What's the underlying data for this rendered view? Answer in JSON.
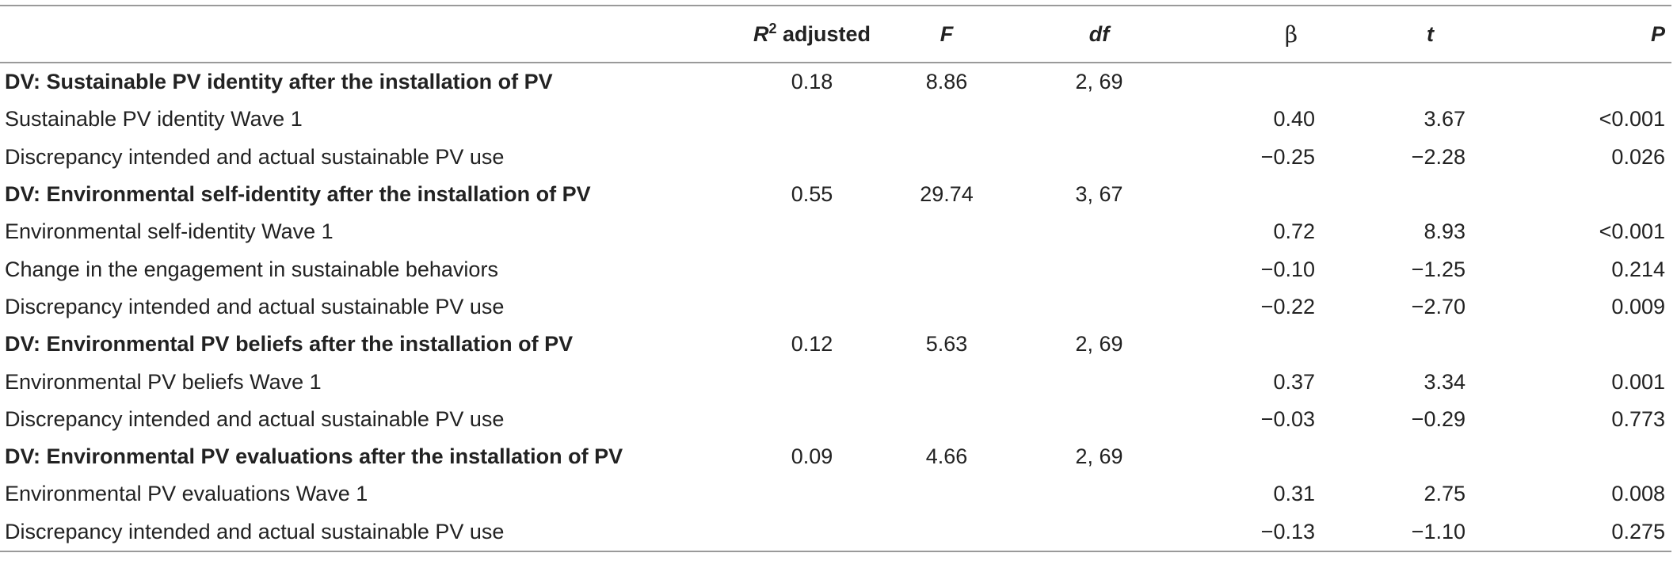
{
  "header": {
    "r2_main": "R",
    "r2_sup": "2",
    "r2_rest": " adjusted",
    "f": "F",
    "df": "df",
    "beta": "β",
    "t": "t",
    "p": "P"
  },
  "groups": [
    {
      "label": "DV: Sustainable PV identity after the installation of PV",
      "r2": "0.18",
      "f": "8.86",
      "df": "2, 69",
      "rows": [
        {
          "label": "Sustainable PV identity Wave 1",
          "beta": "0.40",
          "t": "3.67",
          "p": "<0.001"
        },
        {
          "label": "Discrepancy intended and actual sustainable PV use",
          "beta": "−0.25",
          "t": "−2.28",
          "p": "0.026"
        }
      ]
    },
    {
      "label": "DV: Environmental self-identity after the installation of PV",
      "r2": "0.55",
      "f": "29.74",
      "df": "3, 67",
      "rows": [
        {
          "label": "Environmental self-identity Wave 1",
          "beta": "0.72",
          "t": "8.93",
          "p": "<0.001"
        },
        {
          "label": "Change in the engagement in sustainable behaviors",
          "beta": "−0.10",
          "t": "−1.25",
          "p": "0.214"
        },
        {
          "label": "Discrepancy intended and actual sustainable PV use",
          "beta": "−0.22",
          "t": "−2.70",
          "p": "0.009"
        }
      ]
    },
    {
      "label": "DV: Environmental PV beliefs after the installation of PV",
      "r2": "0.12",
      "f": "5.63",
      "df": "2, 69",
      "rows": [
        {
          "label": "Environmental PV beliefs Wave 1",
          "beta": "0.37",
          "t": "3.34",
          "p": "0.001"
        },
        {
          "label": "Discrepancy intended and actual sustainable PV use",
          "beta": "−0.03",
          "t": "−0.29",
          "p": "0.773"
        }
      ]
    },
    {
      "label": "DV: Environmental PV evaluations after the installation of PV",
      "r2": "0.09",
      "f": "4.66",
      "df": "2, 69",
      "rows": [
        {
          "label": "Environmental PV evaluations Wave 1",
          "beta": "0.31",
          "t": "2.75",
          "p": "0.008"
        },
        {
          "label": "Discrepancy intended and actual sustainable PV use",
          "beta": "−0.13",
          "t": "−1.10",
          "p": "0.275"
        }
      ]
    }
  ]
}
